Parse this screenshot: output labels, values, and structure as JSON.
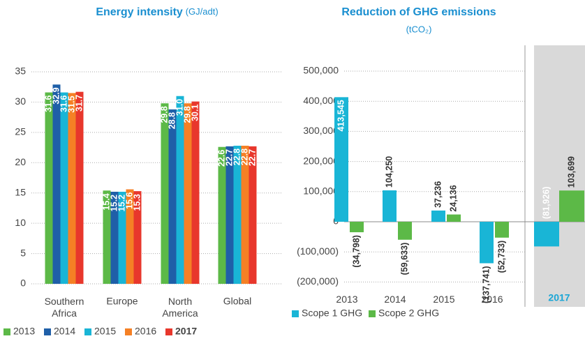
{
  "chart_data": [
    {
      "type": "bar",
      "title": "Energy intensity",
      "subtitle": "(GJ/adt)",
      "categories": [
        "Southern Africa",
        "Europe",
        "North America",
        "Global"
      ],
      "series": [
        {
          "name": "2013",
          "color": "#5cb947",
          "values": [
            31.6,
            15.4,
            29.8,
            22.6
          ],
          "value_labels": [
            "31.6",
            "15.4",
            "29.8",
            "22.6"
          ]
        },
        {
          "name": "2014",
          "color": "#1f5fa8",
          "values": [
            32.9,
            15.2,
            28.8,
            22.7
          ],
          "value_labels": [
            "32.9",
            "15.2",
            "28.8",
            "22.7"
          ]
        },
        {
          "name": "2015",
          "color": "#19b5d6",
          "values": [
            31.6,
            15.2,
            31.0,
            22.8
          ],
          "value_labels": [
            "31.6",
            "15.2",
            "31.0",
            "22.8"
          ]
        },
        {
          "name": "2016",
          "color": "#f58025",
          "values": [
            31.5,
            15.6,
            29.8,
            22.8
          ],
          "value_labels": [
            "31.5",
            "15.6",
            "29.8",
            "22.8"
          ]
        },
        {
          "name": "2017",
          "color": "#e8372c",
          "values": [
            31.7,
            15.3,
            30.1,
            22.7
          ],
          "value_labels": [
            "31.7",
            "15.3",
            "30.1",
            "22.7"
          ]
        }
      ],
      "ylim": [
        0,
        35
      ],
      "yticks": [
        0,
        5,
        10,
        15,
        20,
        25,
        30,
        35
      ],
      "grid": true
    },
    {
      "type": "bar",
      "title": "Reduction of GHG emissions",
      "subtitle": "(tCO₂)",
      "categories": [
        "2013",
        "2014",
        "2015",
        "2016",
        "2017"
      ],
      "series": [
        {
          "name": "Scope 1 GHG",
          "color": "#19b5d6",
          "values": [
            413545,
            104250,
            37236,
            -137741,
            -81926
          ],
          "value_labels": [
            "413,545",
            "104,250",
            "37,236",
            "(137,741)",
            "(81,926)"
          ]
        },
        {
          "name": "Scope 2 GHG",
          "color": "#5cb947",
          "values": [
            -34798,
            -59633,
            24136,
            -52733,
            103699
          ],
          "value_labels": [
            "(34,798)",
            "(59,633)",
            "24,136",
            "(52,733)",
            "103,699"
          ]
        }
      ],
      "ylim": [
        -200000,
        500000
      ],
      "yticks": [
        {
          "value": -200000,
          "label": "(200,000)"
        },
        {
          "value": -100000,
          "label": "(100,000)"
        },
        0,
        {
          "value": 100000,
          "label": "100,000"
        },
        {
          "value": 200000,
          "label": "200,000"
        },
        {
          "value": 300000,
          "label": "300,000"
        },
        {
          "value": 400000,
          "label": "400,000"
        },
        {
          "value": 500000,
          "label": "500,000"
        }
      ],
      "grid": true
    }
  ]
}
